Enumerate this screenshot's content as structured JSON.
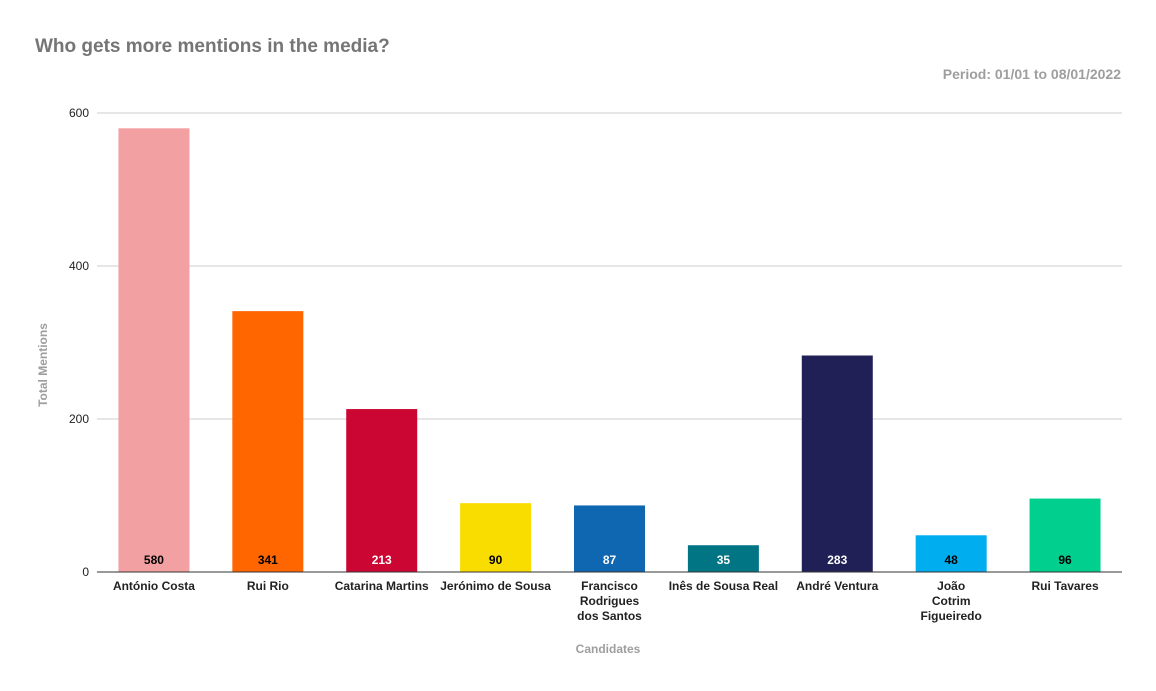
{
  "chart_data": {
    "type": "bar",
    "title": "Who gets more mentions in the media?",
    "subtitle": "Period: 01/01 to 08/01/2022",
    "xlabel": "Candidates",
    "ylabel": "Total Mentions",
    "ylim": [
      0,
      600
    ],
    "yticks": [
      0,
      200,
      400,
      600
    ],
    "grid": true,
    "legend": "none",
    "categories": [
      "António Costa",
      "Rui Rio",
      "Catarina Martins",
      "Jerónimo de Sousa",
      "Francisco Rodrigues dos Santos",
      "Inês de Sousa Real",
      "André Ventura",
      "João Cotrim Figueiredo",
      "Rui Tavares"
    ],
    "values": [
      580,
      341,
      213,
      90,
      87,
      35,
      283,
      48,
      96
    ],
    "colors": [
      "#f2a0a1",
      "#ff6600",
      "#cc0633",
      "#f9dc00",
      "#0f67b1",
      "#017584",
      "#202056",
      "#00aeef",
      "#00cf8d"
    ],
    "label_colors": [
      "#000000",
      "#000000",
      "#ffffff",
      "#000000",
      "#ffffff",
      "#ffffff",
      "#ffffff",
      "#000000",
      "#000000"
    ]
  }
}
